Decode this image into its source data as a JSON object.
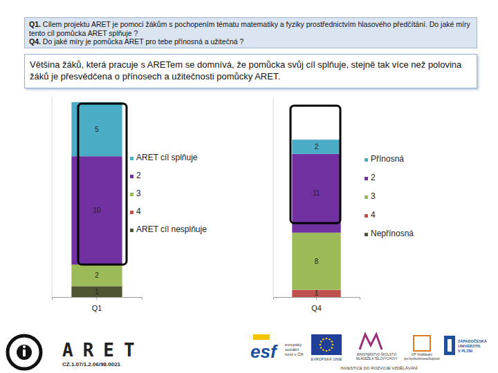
{
  "header": {
    "questions": [
      {
        "label": "Q1.",
        "text": "Cílem projektu ARET je pomoci žákům s pochopením tématu matematiky a fyziky prostřednictvím hlasového předčítání. Do jaké míry tento cíl pomůcka ARET splňuje ?"
      },
      {
        "label": "Q4.",
        "text": "Do jaké míry je pomůcka ARET pro tebe přínosná a užitečná ?"
      }
    ]
  },
  "summary": "Většina žáků, která pracuje s ARETem se domnívá, že pomůcka svůj cíl splňuje, stejně tak více než polovina žáků je přesvědčena o přínosech a užitečnosti pomůcky ARET.",
  "chart_data": [
    {
      "type": "bar",
      "stacked": true,
      "data_labels": true,
      "tick_labels": "x",
      "legend": "right",
      "categories": [
        "Q1"
      ],
      "ylim": [
        0,
        18.5
      ],
      "series": [
        {
          "name": "ARET cíl splňuje",
          "color": "#4bacc6",
          "values": [
            5
          ]
        },
        {
          "name": "2",
          "color": "#7030a0",
          "values": [
            10
          ]
        },
        {
          "name": "3",
          "color": "#9bbb59",
          "values": [
            2
          ]
        },
        {
          "name": "4",
          "color": "#c0504d",
          "values": [
            null
          ]
        },
        {
          "name": "ARET cíl nesplňuje",
          "color": "#4f5532",
          "values": [
            1
          ]
        }
      ]
    },
    {
      "type": "bar",
      "stacked": true,
      "data_labels": true,
      "tick_labels": "x",
      "legend": "right",
      "categories": [
        "Q4"
      ],
      "ylim": [
        0,
        28
      ],
      "series": [
        {
          "name": "Přínosná",
          "color": "#4bacc6",
          "values": [
            2
          ]
        },
        {
          "name": "2",
          "color": "#7030a0",
          "values": [
            11
          ]
        },
        {
          "name": "3",
          "color": "#9bbb59",
          "values": [
            8
          ]
        },
        {
          "name": "4",
          "color": "#c0504d",
          "values": [
            1
          ]
        },
        {
          "name": "Nepřínosná",
          "color": "#4f5532",
          "values": [
            null
          ]
        }
      ]
    }
  ],
  "footer": {
    "logo_text": "ARET",
    "project_code": "CZ.1.07/1.2.06/98.0021",
    "esf": "esf",
    "esf_caption": [
      "evropský",
      "sociální",
      "fond v ČR"
    ],
    "eu_caption": "EVROPSKÁ UNIE",
    "msmt_caption": [
      "MINISTERSTVO ŠKOLSTVÍ,",
      "MLÁDEŽE A TĚLOVÝCHOVY"
    ],
    "opvk_caption": [
      "OP Vzdělávání",
      "pro konkurenceschopnost"
    ],
    "zcu_caption": [
      "ZÁPADOČESKÁ",
      "UNIVERZITA",
      "V PLZNI"
    ],
    "tagline": "INVESTICE DO ROZVOJE VZDĚLÁVÁNÍ"
  }
}
